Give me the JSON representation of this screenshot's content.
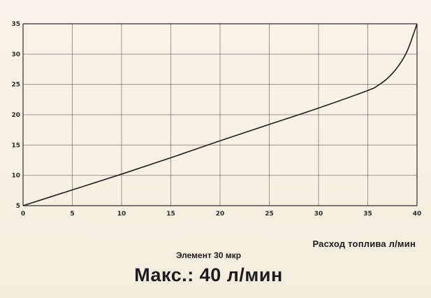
{
  "chart_data": {
    "type": "line",
    "title": "",
    "xlabel": "Расход топлива л/мин",
    "ylabel": "",
    "xlim": [
      0,
      40
    ],
    "ylim": [
      5,
      35
    ],
    "x_ticks": [
      "0",
      "5",
      "10",
      "15",
      "20",
      "25",
      "30",
      "35",
      "40"
    ],
    "y_ticks": [
      "5",
      "10",
      "15",
      "20",
      "25",
      "30",
      "35"
    ],
    "grid": true,
    "series": [
      {
        "x": [
          0,
          5,
          10,
          15,
          20,
          25,
          30,
          35,
          36,
          37,
          38,
          39,
          40
        ],
        "values": [
          5,
          7.6,
          10.2,
          12.9,
          15.7,
          18.4,
          21.1,
          24,
          24.8,
          26,
          27.8,
          30.5,
          35
        ]
      }
    ]
  },
  "captions": {
    "axis_title": "Расход топлива л/мин",
    "element": "Элемент 30 мкр",
    "max": "Макс.: 40 л/мин"
  }
}
